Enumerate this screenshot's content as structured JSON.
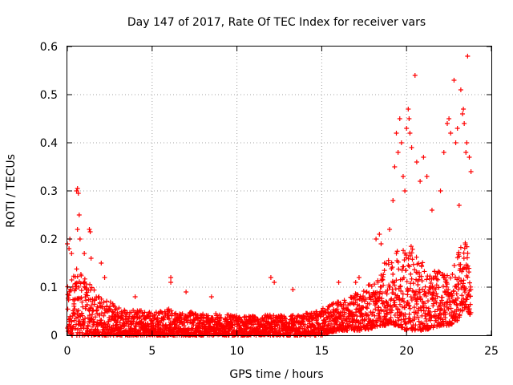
{
  "chart_data": {
    "type": "scatter",
    "title": "Day 147 of 2017, Rate Of TEC Index for receiver vars",
    "xlabel": "GPS time / hours",
    "ylabel": "ROTI / TECUs",
    "xlim": [
      0,
      25
    ],
    "ylim": [
      0,
      0.6
    ],
    "x_ticks": [
      0,
      5,
      10,
      15,
      20,
      25
    ],
    "y_ticks": [
      0,
      0.1,
      0.2,
      0.3,
      0.4,
      0.5,
      0.6
    ],
    "x_tick_labels": [
      "0",
      "5",
      "10",
      "15",
      "20",
      "25"
    ],
    "y_tick_labels": [
      "0",
      "0.1",
      "0.2",
      "0.3",
      "0.4",
      "0.5",
      "0.6"
    ],
    "grid": true,
    "marker": "+",
    "marker_color": "#ff0000",
    "envelope": {
      "x": [
        0.0,
        0.3,
        0.6,
        1.0,
        1.5,
        2.0,
        2.5,
        3.0,
        4.0,
        5.0,
        6.0,
        7.0,
        8.0,
        9.0,
        10.0,
        11.0,
        12.0,
        13.0,
        14.0,
        15.0,
        15.5,
        16.0,
        16.5,
        17.0,
        17.5,
        18.0,
        18.5,
        19.0,
        19.5,
        20.0,
        20.5,
        21.0,
        21.5,
        22.0,
        22.5,
        23.0,
        23.3,
        23.6,
        23.8
      ],
      "y_upper": [
        0.1,
        0.13,
        0.14,
        0.12,
        0.1,
        0.08,
        0.07,
        0.06,
        0.055,
        0.05,
        0.055,
        0.05,
        0.045,
        0.045,
        0.04,
        0.04,
        0.045,
        0.04,
        0.045,
        0.055,
        0.065,
        0.07,
        0.075,
        0.09,
        0.1,
        0.11,
        0.13,
        0.16,
        0.18,
        0.2,
        0.18,
        0.15,
        0.13,
        0.14,
        0.12,
        0.16,
        0.22,
        0.18,
        0.1
      ],
      "y_lower": [
        0.0,
        0.0,
        0.0,
        0.0,
        0.0,
        0.0,
        0.0,
        0.0,
        0.0,
        0.0,
        0.0,
        0.0,
        0.0,
        0.0,
        0.0,
        0.0,
        0.0,
        0.0,
        0.0,
        0.0,
        0.005,
        0.01,
        0.01,
        0.01,
        0.01,
        0.015,
        0.02,
        0.02,
        0.02,
        0.01,
        0.01,
        0.01,
        0.015,
        0.02,
        0.02,
        0.03,
        0.05,
        0.05,
        0.04
      ]
    },
    "outliers": {
      "x": [
        0.0,
        0.1,
        0.15,
        0.25,
        0.55,
        0.6,
        0.65,
        0.7,
        0.6,
        0.75,
        1.0,
        1.3,
        1.35,
        1.4,
        2.0,
        2.2,
        4.0,
        6.1,
        6.1,
        7.0,
        8.5,
        12.0,
        12.2,
        13.3,
        16.0,
        17.0,
        17.2,
        18.2,
        18.4,
        18.5,
        18.7,
        19.0,
        19.2,
        19.3,
        19.4,
        19.5,
        19.6,
        19.7,
        19.8,
        19.9,
        20.0,
        20.1,
        20.15,
        20.2,
        20.3,
        20.5,
        20.6,
        20.8,
        21.0,
        21.2,
        21.5,
        22.0,
        22.2,
        22.4,
        22.5,
        22.6,
        22.8,
        22.9,
        23.0,
        23.1,
        23.2,
        23.3,
        23.35,
        23.4,
        23.5,
        23.55,
        23.6,
        23.7,
        23.8
      ],
      "y": [
        0.19,
        0.18,
        0.2,
        0.17,
        0.3,
        0.305,
        0.295,
        0.25,
        0.22,
        0.2,
        0.17,
        0.22,
        0.215,
        0.16,
        0.15,
        0.12,
        0.08,
        0.12,
        0.11,
        0.09,
        0.08,
        0.12,
        0.11,
        0.095,
        0.11,
        0.11,
        0.12,
        0.2,
        0.21,
        0.19,
        0.15,
        0.22,
        0.28,
        0.35,
        0.42,
        0.38,
        0.45,
        0.4,
        0.33,
        0.3,
        0.43,
        0.47,
        0.45,
        0.42,
        0.39,
        0.54,
        0.36,
        0.32,
        0.37,
        0.33,
        0.26,
        0.3,
        0.38,
        0.44,
        0.45,
        0.42,
        0.53,
        0.4,
        0.43,
        0.27,
        0.51,
        0.46,
        0.47,
        0.44,
        0.38,
        0.4,
        0.58,
        0.37,
        0.34
      ]
    }
  }
}
